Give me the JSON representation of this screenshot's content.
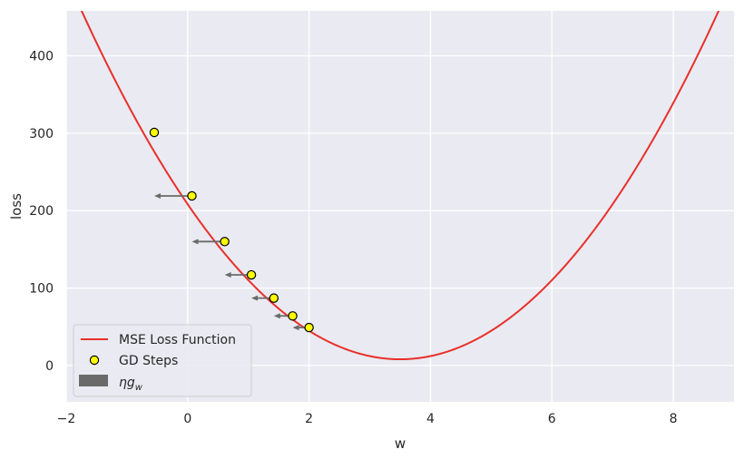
{
  "chart_data": {
    "type": "line",
    "xlabel": "w",
    "ylabel": "loss",
    "xlim": [
      -2,
      9
    ],
    "ylim": [
      -47,
      458
    ],
    "xticks": [
      "−2",
      "0",
      "2",
      "4",
      "6",
      "8"
    ],
    "xtick_values": [
      -2,
      0,
      2,
      4,
      6,
      8
    ],
    "yticks": [
      "0",
      "100",
      "200",
      "300",
      "400"
    ],
    "ytick_values": [
      0,
      100,
      200,
      300,
      400
    ],
    "grid": true,
    "background": "#eaeaf2",
    "legend_position": "lower-left",
    "curve": {
      "name": "MSE Loss Function",
      "color": "#e8302a",
      "formula": "a*(w-3.5)^2 + 8",
      "a": 16.35,
      "vertex": [
        3.5,
        8
      ]
    },
    "points": {
      "name": "GD Steps",
      "color": "#ffff00",
      "edge_color": "#000000",
      "x": [
        -0.55,
        0.07,
        0.61,
        1.05,
        1.42,
        1.73,
        2.0
      ],
      "y": [
        301,
        219,
        160,
        117,
        87,
        64,
        49
      ]
    },
    "arrows": {
      "name": "ηg_w",
      "color": "#6a6a6a",
      "x_start": [
        0.07,
        0.61,
        1.05,
        1.42,
        1.73,
        2.0
      ],
      "x_end": [
        -0.55,
        0.07,
        0.61,
        1.05,
        1.42,
        1.73
      ],
      "y": [
        219,
        160,
        117,
        87,
        64,
        49
      ]
    }
  }
}
